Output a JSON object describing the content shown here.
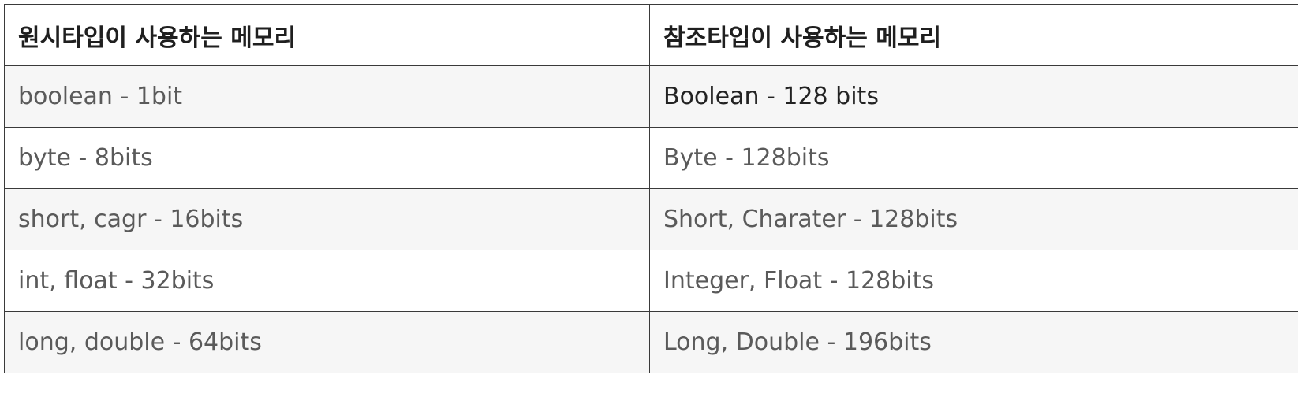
{
  "table": {
    "headers": [
      "원시타입이 사용하는 메모리",
      "참조타입이 사용하는 메모리"
    ],
    "rows": [
      [
        "boolean - 1bit",
        "Boolean - 128 bits"
      ],
      [
        "byte - 8bits",
        "Byte - 128bits"
      ],
      [
        "short, cagr - 16bits",
        "Short, Charater - 128bits"
      ],
      [
        "int, float - 32bits",
        "Integer, Float - 128bits"
      ],
      [
        "long, double - 64bits",
        "Long, Double - 196bits"
      ]
    ]
  }
}
